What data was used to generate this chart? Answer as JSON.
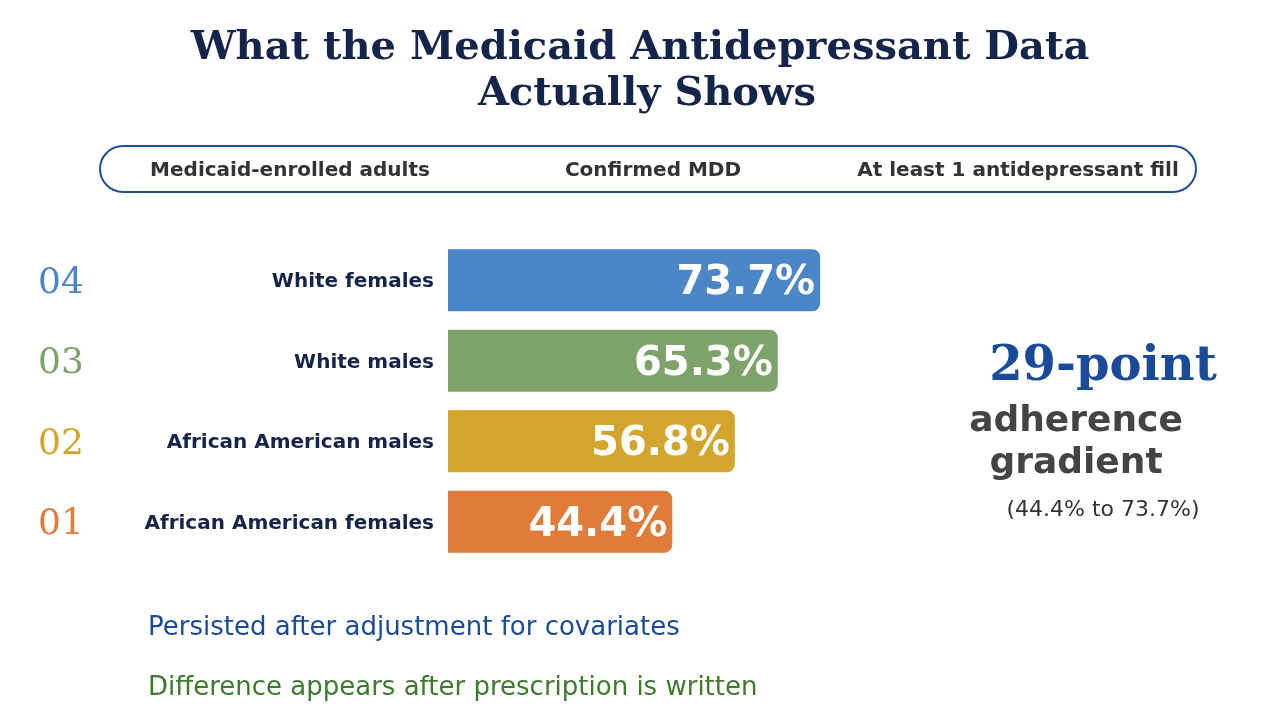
{
  "chart_data": {
    "type": "bar",
    "orientation": "horizontal",
    "title": "What the Medicaid Antidepressant Data Actually Shows",
    "categories": [
      "White females",
      "White males",
      "African American males",
      "African American females"
    ],
    "values": [
      73.7,
      65.3,
      56.8,
      44.4
    ],
    "value_labels": [
      "73.7%",
      "65.3%",
      "56.8%",
      "44.4%"
    ],
    "colors": [
      "#4a86c8",
      "#7ea36a",
      "#d4a52c",
      "#e07b3a"
    ],
    "annotations": [
      "04",
      "03",
      "02",
      "01",
      "Medicaid-enrolled adults",
      "Confirmed MDD",
      "At least 1 antidepressant fill",
      "29-point",
      "adherence",
      "gradient",
      "(44.4% to 73.7%)",
      "Persisted after adjustment for covariates",
      "Difference appears after prescription is written"
    ]
  }
}
